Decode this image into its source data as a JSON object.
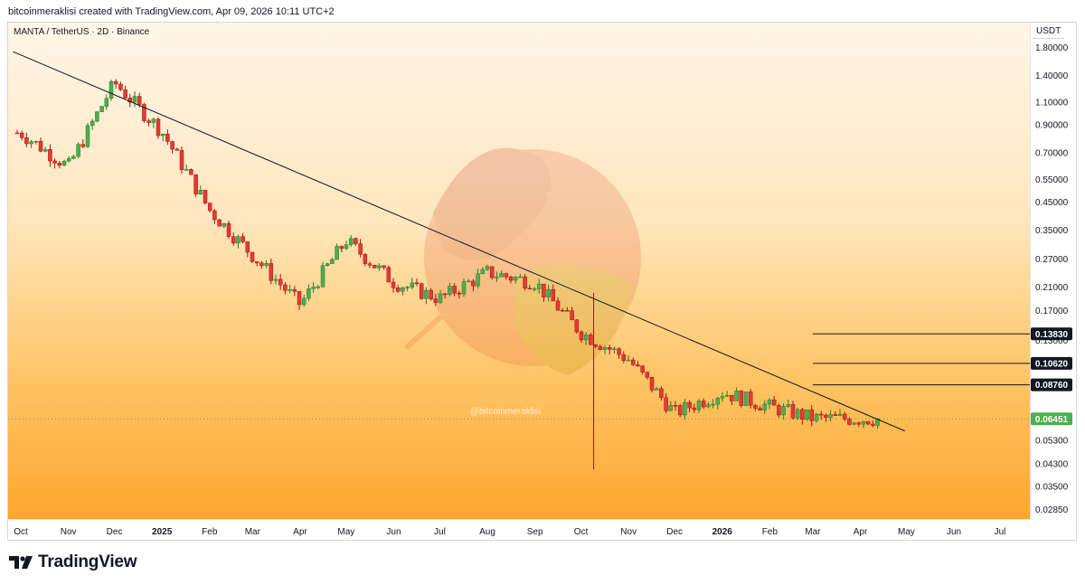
{
  "header": {
    "attribution": "bitcoinmeraklisi created with TradingView.com, Apr 09, 2026 10:11 UTC+2"
  },
  "chart_data": {
    "type": "candlestick",
    "symbol": "MANTA / TetherUS · 2D · Binance",
    "currency": "USDT",
    "watermark_text": "@bitcoinmeraklisi",
    "scale": "log",
    "y_ticks": [
      1.8,
      1.4,
      1.1,
      0.9,
      0.7,
      0.55,
      0.45,
      0.35,
      0.27,
      0.21,
      0.17,
      0.13,
      0.053,
      0.043,
      0.035,
      0.0285
    ],
    "x_ticks": [
      "Oct",
      "Nov",
      "Dec",
      "2025",
      "Feb",
      "Mar",
      "Apr",
      "May",
      "Jun",
      "Jul",
      "Aug",
      "Sep",
      "Oct",
      "Nov",
      "Dec",
      "2026",
      "Feb",
      "Mar",
      "Apr",
      "May",
      "Jun",
      "Jul"
    ],
    "price_labels": [
      {
        "label": "0.13830",
        "value": 0.1383,
        "color": "#131722"
      },
      {
        "label": "0.10620",
        "value": 0.1062,
        "color": "#131722"
      },
      {
        "label": "0.08760",
        "value": 0.0876,
        "color": "#131722"
      },
      {
        "label": "0.06451",
        "value": 0.06451,
        "color": "#4caf50"
      }
    ],
    "horizontal_levels": [
      0.1383,
      0.1062,
      0.0876
    ],
    "trendline": [
      {
        "date": "2024-09-26",
        "price": 1.74
      },
      {
        "date": "2026-04-30",
        "price": 0.0579
      }
    ],
    "price_path": [
      {
        "month": "Oct 2024",
        "price": 0.84
      },
      {
        "month": "Nov 2024",
        "price": 0.62
      },
      {
        "month": "Dec 2024",
        "price": 1.32
      },
      {
        "month": "Jan 2025",
        "price": 0.85
      },
      {
        "month": "Feb 2025",
        "price": 0.42
      },
      {
        "month": "Mar 2025",
        "price": 0.28
      },
      {
        "month": "Apr 2025",
        "price": 0.18
      },
      {
        "month": "May 2025",
        "price": 0.32
      },
      {
        "month": "Jun 2025",
        "price": 0.22
      },
      {
        "month": "Jul 2025",
        "price": 0.19
      },
      {
        "month": "Aug 2025",
        "price": 0.24
      },
      {
        "month": "Sep 2025",
        "price": 0.22
      },
      {
        "month": "Oct 2025",
        "price": 0.14
      },
      {
        "month": "Nov 2025",
        "price": 0.11
      },
      {
        "month": "Dec 2025",
        "price": 0.068
      },
      {
        "month": "Jan 2026",
        "price": 0.082
      },
      {
        "month": "Feb 2026",
        "price": 0.072
      },
      {
        "month": "Mar 2026",
        "price": 0.065
      },
      {
        "month": "Apr 2026",
        "price": 0.0645
      }
    ],
    "spike_low": {
      "month": "Oct 2025",
      "price": 0.041
    }
  },
  "footer": {
    "brand": "TradingView"
  }
}
